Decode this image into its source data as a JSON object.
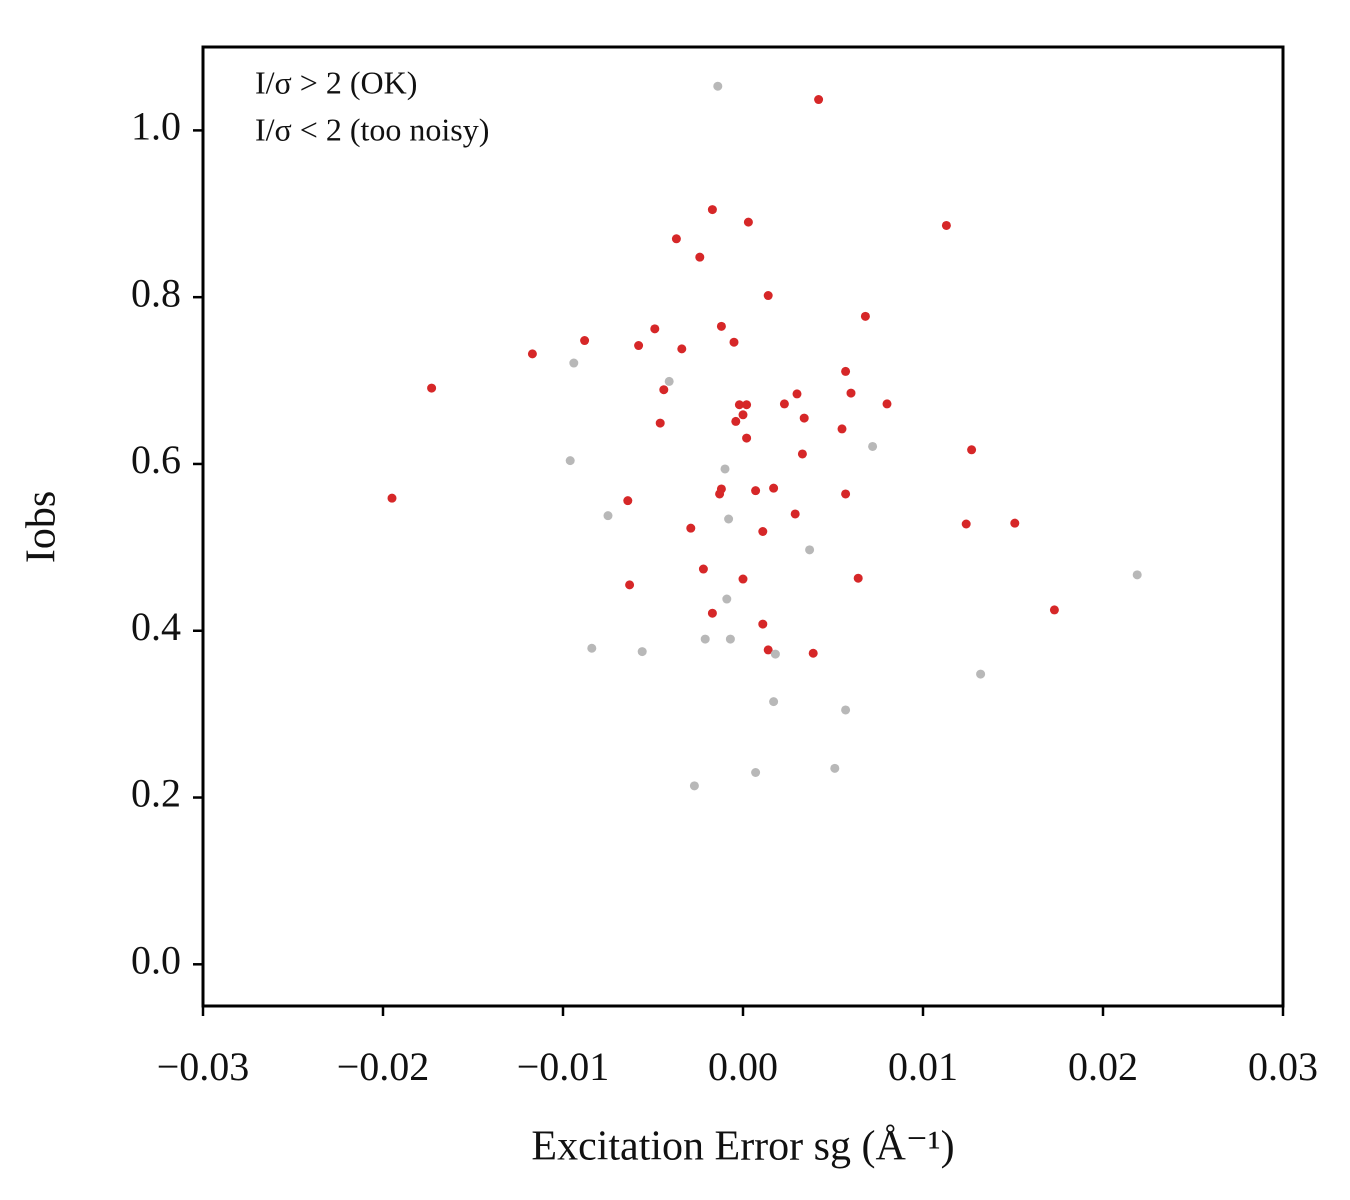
{
  "chart_data": {
    "type": "scatter",
    "x_label": "Excitation Error sg (Å⁻¹)",
    "y_label": "Iobs",
    "xlim": [
      -0.03,
      0.03
    ],
    "ylim": [
      -0.05,
      1.1
    ],
    "xticks": [
      {
        "value": -0.03,
        "label": "−0.03"
      },
      {
        "value": -0.02,
        "label": "−0.02"
      },
      {
        "value": -0.01,
        "label": "−0.01"
      },
      {
        "value": 0,
        "label": "0.00"
      },
      0.01,
      0.02,
      0.03
    ],
    "yticks": [
      {
        "value": 0,
        "label": "0.0"
      },
      0.2,
      0.4,
      0.6,
      0.8,
      {
        "value": 1,
        "label": "1.0"
      }
    ],
    "grid": false,
    "legend": "upper left",
    "series": [
      {
        "name": "I/σ > 2 (OK)",
        "color": "#d62728",
        "x": [
          0.0042,
          -0.0017,
          0.0003,
          0.0113,
          -0.0037,
          -0.0024,
          0.0014,
          0.0068,
          -0.0049,
          -0.0012,
          -0.0088,
          -0.0005,
          -0.0058,
          -0.0034,
          -0.0117,
          -0.0173,
          0.0057,
          -0.0044,
          0.003,
          0.006,
          0.0023,
          -0.0002,
          0.0002,
          0.008,
          0.0,
          0.0034,
          -0.0004,
          -0.0046,
          0.0055,
          0.0002,
          0.0127,
          0.0033,
          -0.0195,
          0.0057,
          0.0017,
          0.0007,
          -0.0012,
          -0.0013,
          -0.0064,
          0.0029,
          0.0124,
          0.0151,
          -0.0029,
          0.0011,
          -0.0022,
          0.0,
          0.0064,
          -0.0063,
          0.0173,
          -0.0017,
          0.0011,
          0.0014,
          0.0039
        ],
        "values": [
          1.037,
          0.905,
          0.89,
          0.886,
          0.87,
          0.848,
          0.802,
          0.777,
          0.762,
          0.765,
          0.748,
          0.746,
          0.742,
          0.738,
          0.732,
          0.691,
          0.711,
          0.689,
          0.684,
          0.685,
          0.672,
          0.671,
          0.671,
          0.672,
          0.659,
          0.655,
          0.651,
          0.649,
          0.642,
          0.631,
          0.617,
          0.612,
          0.559,
          0.564,
          0.571,
          0.568,
          0.57,
          0.564,
          0.556,
          0.54,
          0.528,
          0.529,
          0.523,
          0.519,
          0.474,
          0.462,
          0.463,
          0.455,
          0.425,
          0.421,
          0.408,
          0.377,
          0.373
        ]
      },
      {
        "name": "I/σ < 2 (too noisy)",
        "color": "#b8b8b8",
        "x": [
          -0.0014,
          -0.0094,
          -0.0041,
          0.0072,
          -0.0096,
          -0.001,
          -0.0075,
          -0.0008,
          0.0037,
          0.0219,
          -0.0009,
          -0.0021,
          -0.0007,
          -0.0084,
          -0.0056,
          0.0018,
          0.0132,
          0.0017,
          0.0057,
          0.0007,
          0.0051,
          -0.0027
        ],
        "values": [
          1.053,
          0.721,
          0.699,
          0.621,
          0.604,
          0.594,
          0.538,
          0.534,
          0.497,
          0.467,
          0.438,
          0.39,
          0.39,
          0.379,
          0.375,
          0.372,
          0.348,
          0.315,
          0.305,
          0.23,
          0.235,
          0.214
        ]
      }
    ]
  }
}
